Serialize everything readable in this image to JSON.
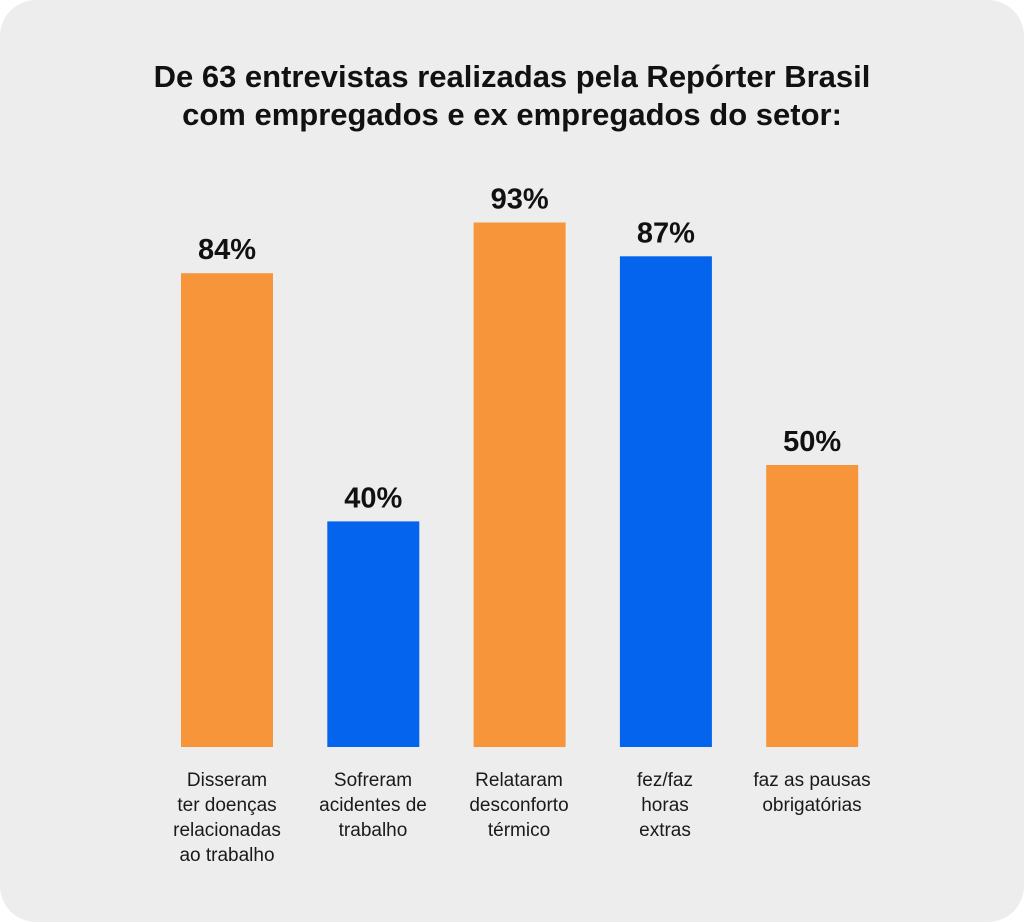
{
  "chart_data": {
    "type": "bar",
    "title_lines": [
      "De 63 entrevistas realizadas pela Repórter Brasil",
      "com empregados e ex empregados do setor:"
    ],
    "categories": [
      "Disseram\nter doenças\nrelacionadas\nao trabalho",
      "Sofreram\nacidentes de\ntrabalho",
      "Relataram\ndesconforto\ntérmico",
      "fez/faz\nhoras\nextras",
      "faz as pausas\nobrigatórias"
    ],
    "values": [
      84,
      40,
      93,
      87,
      50
    ],
    "data_labels": [
      "84%",
      "40%",
      "93%",
      "87%",
      "50%"
    ],
    "bar_colors": [
      "#f7953a",
      "#0564ee",
      "#f7953a",
      "#0564ee",
      "#f7953a"
    ],
    "unit": "%",
    "ylim": [
      0,
      100
    ],
    "grid": false,
    "legend": "none"
  },
  "colors": {
    "background": "#ededed",
    "orange": "#f7953a",
    "blue": "#0564ee",
    "text": "#111111"
  }
}
